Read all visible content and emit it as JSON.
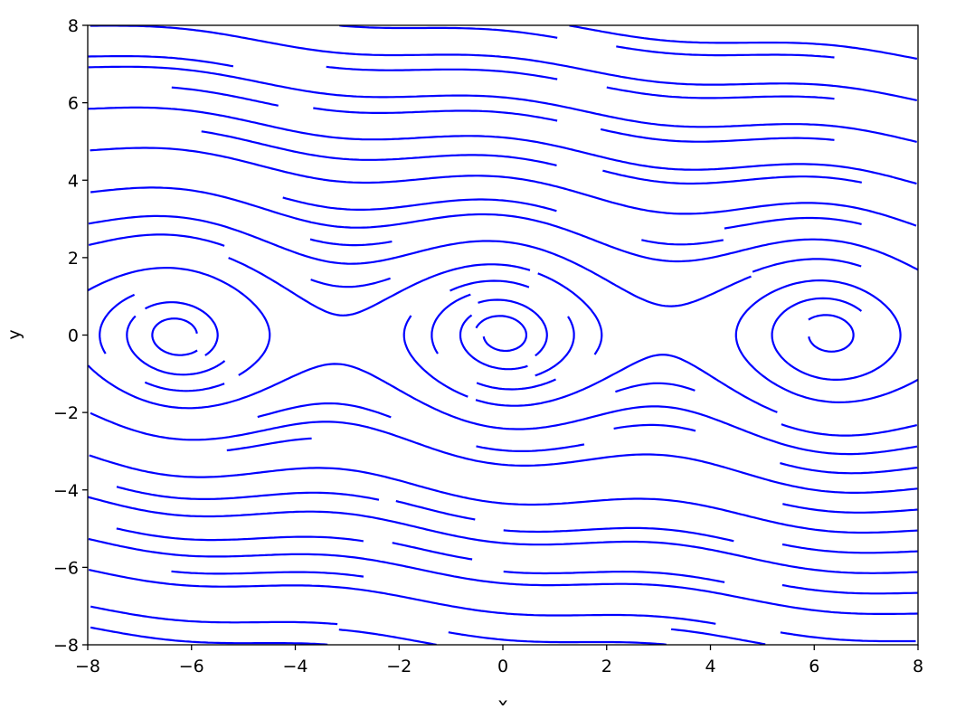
{
  "chart_data": {
    "type": "streamplot",
    "title": "",
    "xlabel": "x",
    "ylabel": "y",
    "xlim": [
      -8,
      8
    ],
    "ylim": [
      -8,
      8
    ],
    "xticks": [
      -8,
      -6,
      -4,
      -2,
      0,
      2,
      4,
      6,
      8
    ],
    "yticks": [
      -8,
      -6,
      -4,
      -2,
      0,
      2,
      4,
      6,
      8
    ],
    "xtick_labels": [
      "−8",
      "−6",
      "−4",
      "−2",
      "0",
      "2",
      "4",
      "6",
      "8"
    ],
    "ytick_labels": [
      "−8",
      "−6",
      "−4",
      "−2",
      "0",
      "2",
      "4",
      "6",
      "8"
    ],
    "grid": false,
    "line_color": "#0000ff",
    "spiral_centers": [
      [
        -6.28,
        0
      ],
      [
        0,
        0
      ],
      [
        6.28,
        0
      ]
    ]
  }
}
